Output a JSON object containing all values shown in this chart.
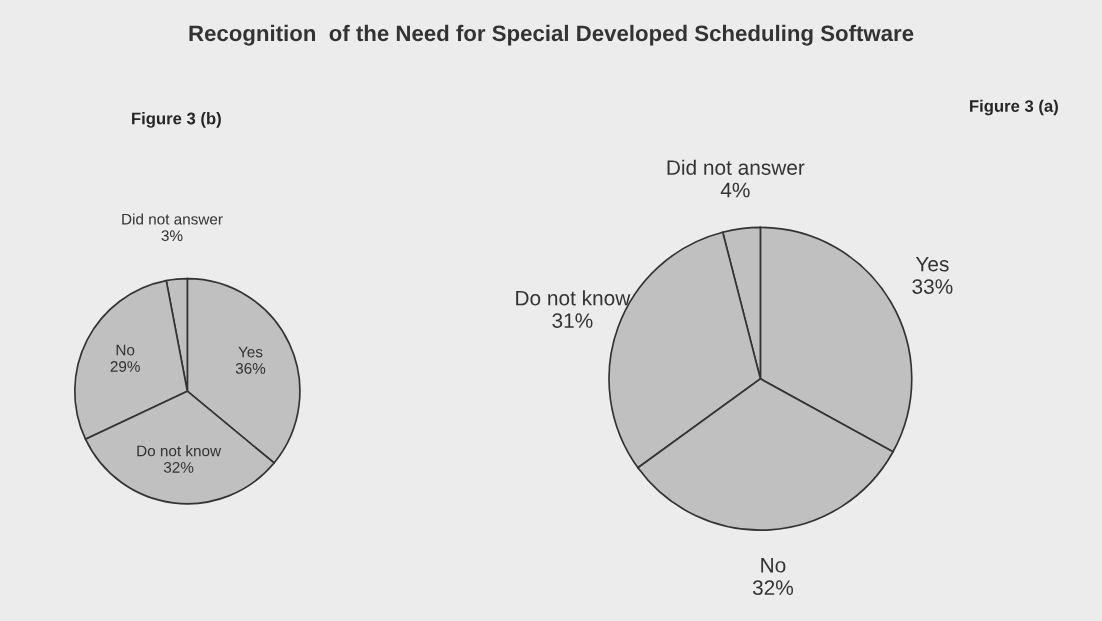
{
  "chart_data": [
    {
      "type": "pie",
      "title": "Recognition  of the Need for Special Developed Scheduling Software",
      "subtitle": "Figure 3 (b)",
      "categories": [
        "Yes",
        "Did not answer",
        "No",
        "Do not know"
      ],
      "values": [
        36,
        3,
        29,
        32
      ],
      "value_labels": [
        "36%",
        "3%",
        "29%",
        "32%"
      ],
      "colors": [
        "#c0c0c0",
        "#c0c0c0",
        "#c0c0c0",
        "#c0c0c0"
      ]
    },
    {
      "type": "pie",
      "subtitle": "Figure 3 (a)",
      "categories": [
        "Yes",
        "Did not answer",
        "Do not know",
        "No"
      ],
      "values": [
        33,
        4,
        31,
        32
      ],
      "value_labels": [
        "33%",
        "4%",
        "31%",
        "32%"
      ],
      "colors": [
        "#c0c0c0",
        "#c0c0c0",
        "#c0c0c0",
        "#c0c0c0"
      ]
    }
  ]
}
